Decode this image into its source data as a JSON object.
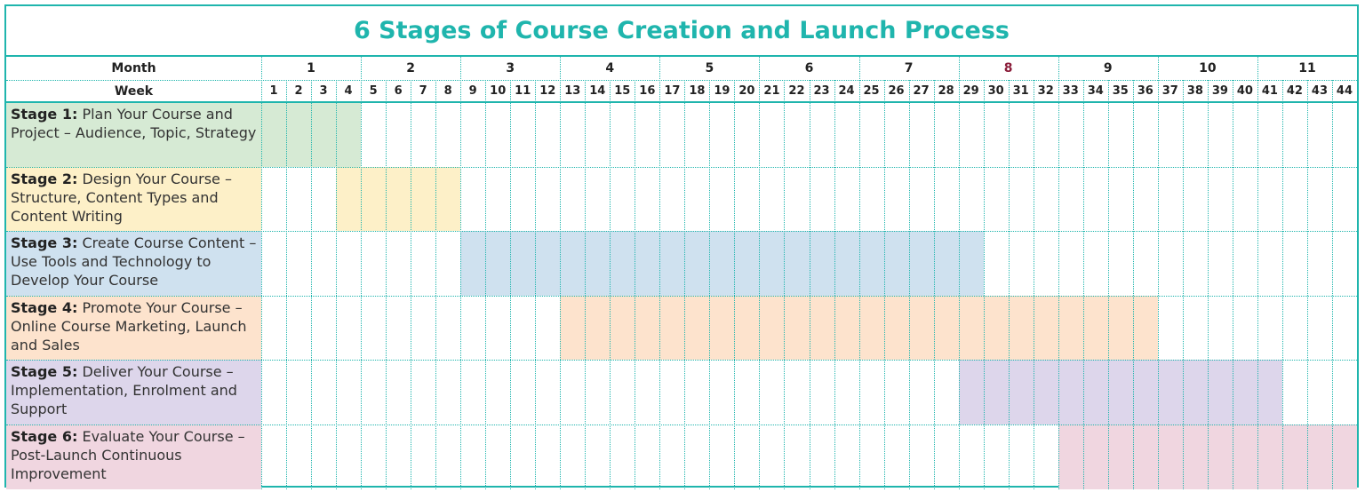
{
  "title": "6 Stages of Course Creation and Launch Process",
  "header": {
    "month_label": "Month",
    "week_label": "Week"
  },
  "chart_data": {
    "type": "gantt",
    "months": [
      "1",
      "2",
      "3",
      "4",
      "5",
      "6",
      "7",
      "8",
      "9",
      "10",
      "11"
    ],
    "month_week_start": [
      1,
      5,
      9,
      13,
      17,
      21,
      25,
      29,
      33,
      37,
      41
    ],
    "weeks": [
      "1",
      "2",
      "3",
      "4",
      "5",
      "6",
      "7",
      "8",
      "9",
      "10",
      "11",
      "12",
      "13",
      "14",
      "15",
      "16",
      "17",
      "18",
      "19",
      "20",
      "21",
      "22",
      "23",
      "24",
      "25",
      "26",
      "27",
      "28",
      "29",
      "30",
      "31",
      "32",
      "33",
      "34",
      "35",
      "36",
      "37",
      "38",
      "39",
      "40",
      "41",
      "42",
      "43",
      "44"
    ],
    "stages": [
      {
        "label_bold": "Stage 1:",
        "label_rest": " Plan Your Course and Project – Audience, Topic, Strategy",
        "start_week": 1,
        "end_week": 4,
        "color": "#d6ead4"
      },
      {
        "label_bold": "Stage 2:",
        "label_rest": " Design Your Course – Structure, Content Types and Content Writing",
        "start_week": 4,
        "end_week": 8,
        "color": "#fdf0c8"
      },
      {
        "label_bold": "Stage 3:",
        "label_rest": " Create Course Content – Use Tools and Technology to Develop Your Course",
        "start_week": 9,
        "end_week": 29,
        "color": "#cfe1ef"
      },
      {
        "label_bold": "Stage 4:",
        "label_rest": " Promote Your Course – Online Course Marketing, Launch and Sales",
        "start_week": 13,
        "end_week": 36,
        "color": "#fde3cd"
      },
      {
        "label_bold": "Stage 5:",
        "label_rest": " Deliver Your Course – Implementation, Enrolment and Support",
        "start_week": 29,
        "end_week": 41,
        "color": "#ddd6eb"
      },
      {
        "label_bold": "Stage 6:",
        "label_rest": " Evaluate Your Course – Post-Launch Continuous Improvement",
        "start_week": 33,
        "end_week": 44,
        "color": "#f0d6e0"
      }
    ]
  },
  "colors": {
    "accent": "#1fb5ad",
    "highlight_month": "#8b1d3a"
  }
}
